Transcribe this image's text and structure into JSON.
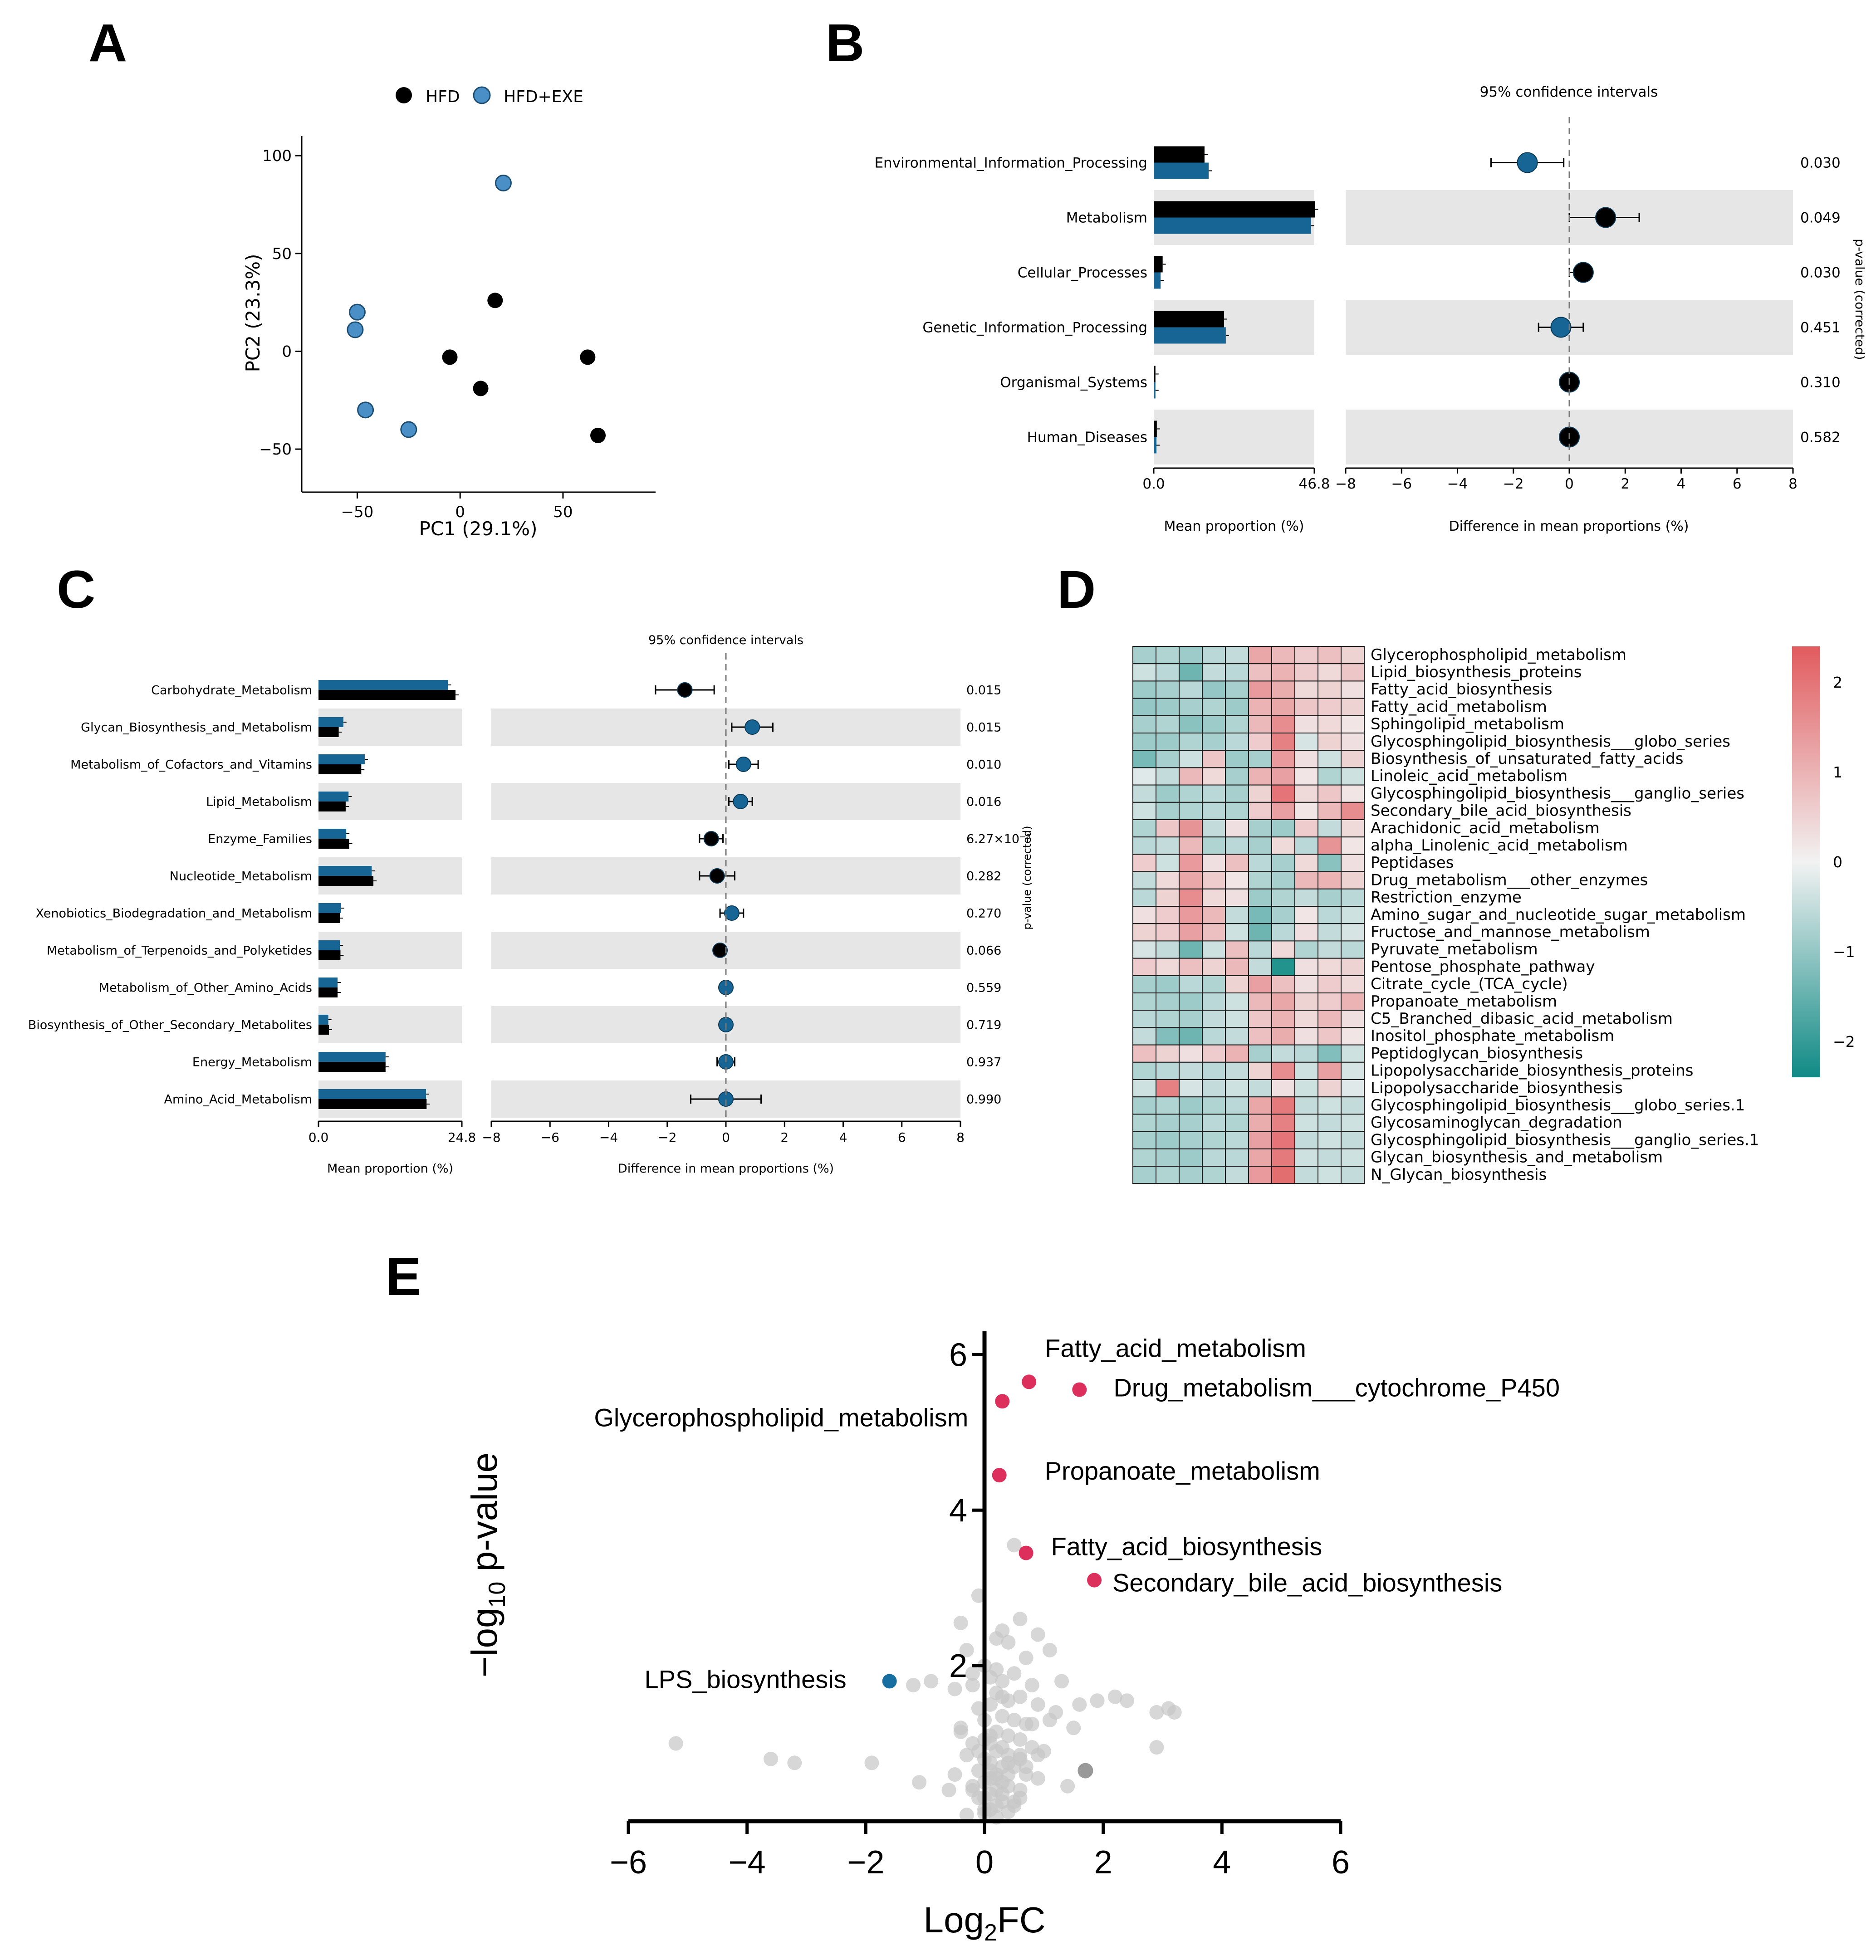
{
  "figure": {
    "panel_a_letter": "A",
    "panel_b_letter": "B",
    "panel_c_letter": "C",
    "panel_d_letter": "D",
    "panel_e_letter": "E"
  },
  "colors": {
    "hfd": "#000000",
    "hfd_exe_light": "#4a8fc6",
    "hfd_exe_dark": "#166595",
    "band": "#e6e6e6",
    "up": "#dc2f5b",
    "down": "#176ea0",
    "ns": "#c6c6c6",
    "heat_high": "#e15b5e",
    "heat_low": "#108a85"
  },
  "chart_data": [
    {
      "id": "A",
      "type": "scatter",
      "title": "",
      "xlabel": "PC1 (29.1%)",
      "ylabel": "PC2 (23.3%)",
      "xlim": [
        -77,
        95
      ],
      "ylim": [
        -72,
        110
      ],
      "xticks": [
        -50,
        0,
        50
      ],
      "yticks": [
        100,
        50,
        0,
        -50
      ],
      "legend": [
        "HFD",
        "HFD+EXE"
      ],
      "legend_position": "top",
      "series": [
        {
          "name": "HFD",
          "x": [
            17,
            -5,
            10,
            62,
            67
          ],
          "y": [
            26,
            -3,
            -19,
            -3,
            -43
          ]
        },
        {
          "name": "HFD+EXE",
          "x": [
            21,
            -50,
            -51,
            -46,
            -25
          ],
          "y": [
            86,
            20,
            11,
            -30,
            -40
          ]
        }
      ]
    },
    {
      "id": "B",
      "type": "bar+errorbar",
      "title": "95% confidence intervals",
      "categories": [
        "Environmental_Information_Processing",
        "Metabolism",
        "Cellular_Processes",
        "Genetic_Information_Processing",
        "Organismal_Systems",
        "Human_Diseases"
      ],
      "bar_xlabel": "Mean proportion (%)",
      "bar_xlim": [
        0,
        46.8
      ],
      "bar_xtick_labels": [
        "0.0",
        "46.8"
      ],
      "bar_series": [
        {
          "name": "HFD",
          "values": [
            14.8,
            47.0,
            2.6,
            20.5,
            0.5,
            0.9
          ]
        },
        {
          "name": "HFD+EXE",
          "values": [
            16.0,
            45.8,
            2.0,
            21.0,
            0.5,
            0.8
          ]
        }
      ],
      "diff_xlabel": "Difference in mean proportions (%)",
      "diff_xlim": [
        -8,
        8
      ],
      "diff_xticks": [
        -8,
        -6,
        -4,
        -2,
        0,
        2,
        4,
        6,
        8
      ],
      "diff": [
        -1.5,
        1.3,
        0.5,
        -0.3,
        0.0,
        0.0
      ],
      "ci_low": [
        -2.8,
        0.0,
        0.0,
        -1.1,
        -0.1,
        -0.1
      ],
      "ci_high": [
        -0.2,
        2.5,
        0.8,
        0.5,
        0.1,
        0.1
      ],
      "pvalues": [
        "0.030",
        "0.049",
        "0.030",
        "0.451",
        "0.310",
        "0.582"
      ],
      "pvalue_label": "p-value (corrected)"
    },
    {
      "id": "C",
      "type": "bar+errorbar",
      "title": "95% confidence intervals",
      "categories": [
        "Carbohydrate_Metabolism",
        "Glycan_Biosynthesis_and_Metabolism",
        "Metabolism_of_Cofactors_and_Vitamins",
        "Lipid_Metabolism",
        "Enzyme_Families",
        "Nucleotide_Metabolism",
        "Xenobiotics_Biodegradation_and_Metabolism",
        "Metabolism_of_Terpenoids_and_Polyketides",
        "Metabolism_of_Other_Amino_Acids",
        "Biosynthesis_of_Other_Secondary_Metabolites",
        "Energy_Metabolism",
        "Amino_Acid_Metabolism"
      ],
      "bar_xlabel": "Mean proportion (%)",
      "bar_xlim": [
        0,
        24.8
      ],
      "bar_xtick_labels": [
        "0.0",
        "24.8"
      ],
      "bar_series": [
        {
          "name": "HFD",
          "values": [
            23.7,
            3.5,
            7.4,
            4.7,
            5.3,
            9.5,
            3.7,
            3.8,
            3.3,
            1.8,
            11.6,
            18.7
          ]
        },
        {
          "name": "HFD+EXE",
          "values": [
            22.4,
            4.3,
            8.0,
            5.2,
            4.8,
            9.2,
            3.9,
            3.7,
            3.3,
            1.7,
            11.6,
            18.6
          ]
        }
      ],
      "diff_xlabel": "Difference in mean proportions (%)",
      "diff_xlim": [
        -8,
        8
      ],
      "diff_xticks": [
        -8,
        -6,
        -4,
        -2,
        0,
        2,
        4,
        6,
        8
      ],
      "diff": [
        -1.4,
        0.9,
        0.6,
        0.5,
        -0.5,
        -0.3,
        0.2,
        -0.2,
        0.0,
        0.0,
        0.0,
        0.0
      ],
      "ci_low": [
        -2.4,
        0.2,
        0.1,
        0.1,
        -0.9,
        -0.9,
        -0.2,
        -0.4,
        -0.1,
        -0.1,
        -0.3,
        -1.2
      ],
      "ci_high": [
        -0.4,
        1.6,
        1.1,
        0.9,
        -0.1,
        0.3,
        0.6,
        0.0,
        0.1,
        0.1,
        0.3,
        1.2
      ],
      "pvalues": [
        "0.015",
        "0.015",
        "0.010",
        "0.016",
        "6.27×10⁻³",
        "0.282",
        "0.270",
        "0.066",
        "0.559",
        "0.719",
        "0.937",
        "0.990"
      ],
      "pvalue_label": "p-value (corrected)"
    },
    {
      "id": "D",
      "type": "heatmap",
      "rows": [
        "Glycerophospholipid_metabolism",
        "Lipid_biosynthesis_proteins",
        "Fatty_acid_biosynthesis",
        "Fatty_acid_metabolism",
        "Sphingolipid_metabolism",
        "Glycosphingolipid_biosynthesis___globo_series",
        "Biosynthesis_of_unsaturated_fatty_acids",
        "Linoleic_acid_metabolism",
        "Glycosphingolipid_biosynthesis___ganglio_series",
        "Secondary_bile_acid_biosynthesis",
        "Arachidonic_acid_metabolism",
        "alpha_Linolenic_acid_metabolism",
        "Peptidases",
        "Drug_metabolism___other_enzymes",
        "Restriction_enzyme",
        "Amino_sugar_and_nucleotide_sugar_metabolism",
        "Fructose_and_mannose_metabolism",
        "Pyruvate_metabolism",
        "Pentose_phosphate_pathway",
        "Citrate_cycle_(TCA_cycle)",
        "Propanoate_metabolism",
        "C5_Branched_dibasic_acid_metabolism",
        "Inositol_phosphate_metabolism",
        "Peptidoglycan_biosynthesis",
        "Lipopolysaccharide_biosynthesis_proteins",
        "Lipopolysaccharide_biosynthesis",
        "Glycosphingolipid_biosynthesis___globo_series.1",
        "Glycosaminoglycan_degradation",
        "Glycosphingolipid_biosynthesis___ganglio_series.1",
        "Glycan_biosynthesis_and_metabolism",
        "N_Glycan_biosynthesis"
      ],
      "columns": 10,
      "colorbar_range": [
        -2.4,
        2.4
      ],
      "colorbar_ticks": [
        2,
        1,
        0,
        -1,
        -2
      ],
      "colorbar_labels": [
        "2",
        "1",
        "0",
        "−1",
        "−2"
      ],
      "values": [
        [
          -0.8,
          -0.7,
          -0.9,
          -0.6,
          -0.5,
          1.2,
          0.9,
          0.6,
          0.8,
          0.5
        ],
        [
          -0.4,
          -0.6,
          -1.4,
          -0.5,
          -0.6,
          0.8,
          1.0,
          0.6,
          0.4,
          0.7
        ],
        [
          -0.9,
          -0.8,
          -0.6,
          -1.0,
          -0.8,
          1.4,
          1.1,
          0.4,
          0.5,
          0.3
        ],
        [
          -1.0,
          -0.9,
          -0.8,
          -0.7,
          -0.9,
          1.0,
          1.2,
          0.7,
          0.6,
          0.5
        ],
        [
          -0.8,
          -0.7,
          -1.1,
          -0.9,
          -0.7,
          0.9,
          1.6,
          0.3,
          0.4,
          0.2
        ],
        [
          -0.9,
          -0.9,
          -0.7,
          -0.8,
          -0.6,
          0.6,
          1.8,
          -0.3,
          0.5,
          0.3
        ],
        [
          -1.3,
          -0.8,
          -0.4,
          0.7,
          -0.9,
          -0.8,
          1.4,
          0.3,
          -0.4,
          0.5
        ],
        [
          -0.2,
          -0.5,
          0.9,
          0.4,
          -0.8,
          1.0,
          1.3,
          0.2,
          -0.7,
          -0.4
        ],
        [
          -0.5,
          -0.9,
          -0.7,
          -0.6,
          -0.8,
          0.5,
          2.0,
          0.4,
          0.7,
          0.2
        ],
        [
          -0.4,
          -0.8,
          -0.7,
          -0.6,
          -0.7,
          0.6,
          1.3,
          0.2,
          0.9,
          1.6
        ],
        [
          -0.7,
          0.7,
          1.5,
          -0.5,
          0.3,
          -0.8,
          -0.9,
          0.6,
          -0.5,
          0.4
        ],
        [
          -0.6,
          -0.5,
          0.9,
          -0.7,
          -0.6,
          -0.8,
          0.4,
          -0.6,
          1.5,
          0.2
        ],
        [
          0.6,
          -0.4,
          1.4,
          0.3,
          0.8,
          -0.6,
          -0.8,
          0.4,
          -1.1,
          0.3
        ],
        [
          -0.5,
          0.4,
          1.2,
          0.6,
          0.2,
          -0.7,
          -0.8,
          0.9,
          1.0,
          0.5
        ],
        [
          -0.6,
          0.5,
          1.6,
          0.4,
          0.3,
          -0.9,
          -0.7,
          -0.5,
          -0.8,
          -0.6
        ],
        [
          0.3,
          0.6,
          1.4,
          0.9,
          -0.5,
          -1.3,
          -0.8,
          0.2,
          -0.6,
          -0.4
        ],
        [
          0.5,
          0.6,
          1.3,
          0.8,
          -0.4,
          -1.4,
          -0.6,
          0.3,
          -0.5,
          -0.3
        ],
        [
          -0.3,
          -0.5,
          -1.4,
          -0.4,
          0.8,
          -0.6,
          0.4,
          -0.7,
          -0.5,
          -0.6
        ],
        [
          0.6,
          0.4,
          0.8,
          0.5,
          0.9,
          -0.5,
          -2.2,
          0.3,
          0.4,
          0.5
        ],
        [
          -0.8,
          -0.9,
          -0.6,
          -0.7,
          0.5,
          1.3,
          0.8,
          0.3,
          0.6,
          0.4
        ],
        [
          -0.7,
          -0.8,
          -0.9,
          -0.6,
          -0.4,
          0.9,
          1.2,
          0.5,
          0.6,
          1.0
        ],
        [
          -0.6,
          -0.7,
          -0.8,
          -0.5,
          -0.4,
          0.7,
          1.0,
          0.4,
          0.9,
          0.3
        ],
        [
          -0.5,
          -1.2,
          -1.4,
          -0.6,
          -0.5,
          0.8,
          1.1,
          0.3,
          0.7,
          0.2
        ],
        [
          0.8,
          0.5,
          0.3,
          0.6,
          1.0,
          -0.8,
          -0.5,
          -0.6,
          -1.2,
          -0.4
        ],
        [
          -0.7,
          -0.6,
          -0.5,
          -0.6,
          -0.5,
          0.5,
          1.6,
          -0.4,
          1.3,
          -0.3
        ],
        [
          -0.4,
          1.8,
          -0.3,
          -0.5,
          -0.4,
          -0.5,
          0.3,
          -0.4,
          0.5,
          -0.2
        ],
        [
          -0.8,
          -0.7,
          -0.9,
          -0.7,
          -0.6,
          1.2,
          1.9,
          -0.5,
          -0.4,
          -0.5
        ],
        [
          -0.7,
          -0.8,
          -0.8,
          -0.6,
          -0.7,
          1.1,
          1.8,
          -0.4,
          -0.5,
          -0.4
        ],
        [
          -0.8,
          -0.9,
          -0.8,
          -0.7,
          -0.6,
          1.3,
          2.0,
          -0.5,
          -0.4,
          -0.5
        ],
        [
          -0.7,
          -0.8,
          -0.9,
          -0.6,
          -0.6,
          1.2,
          1.9,
          -0.4,
          -0.5,
          -0.4
        ],
        [
          -0.8,
          -0.7,
          -0.8,
          -0.7,
          -0.5,
          1.4,
          2.1,
          -0.5,
          -0.4,
          -0.5
        ]
      ]
    },
    {
      "id": "E",
      "type": "scatter",
      "title": "",
      "xlabel_base": "Log",
      "xlabel_sub": "2",
      "xlabel_tail": "FC",
      "ylabel_pre": "−log",
      "ylabel_sub": "10",
      "ylabel_post": " p-value",
      "xlim": [
        -6,
        6
      ],
      "ylim": [
        0,
        6.3
      ],
      "xticks": [
        -6,
        -4,
        -2,
        0,
        2,
        4,
        6
      ],
      "xtick_labels": [
        "−6",
        "−4",
        "−2",
        "0",
        "2",
        "4",
        "6"
      ],
      "yticks": [
        2,
        4,
        6
      ],
      "ytick_labels": [
        "2",
        "4",
        "6"
      ],
      "labeled_points": [
        {
          "label": "Fatty_acid_metabolism",
          "x": 0.75,
          "y": 5.65,
          "group": "up"
        },
        {
          "label": "Drug_metabolism___cytochrome_P450",
          "x": 1.6,
          "y": 5.55,
          "group": "up"
        },
        {
          "label": "Glycerophospholipid_metabolism",
          "x": 0.3,
          "y": 5.4,
          "group": "up"
        },
        {
          "label": "Propanoate_metabolism",
          "x": 0.25,
          "y": 4.45,
          "group": "up"
        },
        {
          "label": "Fatty_acid_biosynthesis",
          "x": 0.7,
          "y": 3.45,
          "group": "up"
        },
        {
          "label": "Secondary_bile_acid_biosynthesis",
          "x": 1.85,
          "y": 3.1,
          "group": "up"
        },
        {
          "label": "LPS_biosynthesis",
          "x": -1.6,
          "y": 1.8,
          "group": "down"
        }
      ],
      "background_points": {
        "x": [
          0.5,
          -0.1,
          0.6,
          0.3,
          -0.4,
          0.2,
          0.4,
          -0.3,
          0.9,
          1.1,
          0.7,
          0.0,
          0.2,
          -0.2,
          0.1,
          0.5,
          0.3,
          0.8,
          1.3,
          -0.5,
          0.2,
          0.6,
          0.4,
          0.1,
          -0.1,
          0.9,
          1.2,
          0.3,
          0.0,
          0.5,
          0.7,
          -0.4,
          1.5,
          0.2,
          0.4,
          0.6,
          -0.2,
          0.1,
          0.3,
          0.8,
          1.0,
          0.2,
          -0.3,
          0.4,
          0.6,
          0.0,
          0.1,
          0.3,
          0.5,
          -0.1,
          0.2,
          0.7,
          0.9,
          0.1,
          0.0,
          0.3,
          -0.2,
          0.4,
          0.2,
          0.6,
          0.1,
          0.0,
          -0.1,
          0.3,
          0.5,
          0.2,
          0.1,
          0.0,
          0.4,
          -0.3,
          2.4,
          2.9,
          3.1,
          3.2,
          2.2,
          1.9,
          1.6,
          -5.2,
          -3.6,
          -3.2,
          -1.9,
          -1.1,
          -0.6,
          -0.9,
          -1.2,
          1.7,
          2.9,
          1.1,
          0.9,
          -0.5,
          0.0,
          0.4,
          0.8,
          -0.2,
          0.3,
          1.4,
          0.6,
          0.2,
          -0.4,
          0.5,
          0.1,
          -0.1,
          0.3,
          0.7,
          0.2,
          0.0,
          0.4,
          -0.2,
          0.6,
          0.1
        ],
        "y": [
          3.55,
          2.9,
          2.6,
          2.45,
          2.55,
          2.35,
          2.3,
          2.2,
          2.4,
          2.2,
          2.1,
          2.0,
          1.95,
          1.9,
          1.85,
          1.9,
          1.8,
          1.75,
          1.8,
          1.7,
          1.65,
          1.6,
          1.55,
          1.5,
          1.45,
          1.5,
          1.4,
          1.35,
          1.3,
          1.3,
          1.25,
          1.2,
          1.2,
          1.15,
          1.1,
          1.05,
          1.0,
          1.0,
          0.95,
          0.95,
          0.9,
          0.9,
          0.85,
          0.85,
          0.8,
          0.8,
          0.75,
          0.7,
          0.7,
          0.65,
          0.6,
          0.6,
          0.55,
          0.55,
          0.5,
          0.5,
          0.45,
          0.45,
          0.4,
          0.4,
          0.35,
          0.3,
          0.3,
          0.25,
          0.25,
          0.2,
          0.15,
          0.1,
          0.12,
          0.08,
          1.55,
          1.4,
          1.45,
          1.4,
          1.6,
          1.55,
          1.5,
          1.0,
          0.8,
          0.75,
          0.75,
          0.5,
          0.4,
          1.8,
          1.75,
          0.65,
          0.95,
          1.3,
          0.85,
          0.6,
          1.05,
          0.75,
          1.25,
          1.75,
          1.6,
          0.45,
          0.3,
          0.55,
          1.15,
          0.2,
          0.65,
          0.9,
          0.35,
          0.7,
          0.05,
          0.15,
          0.6,
          0.4,
          0.85,
          1.1
        ]
      },
      "highlight_gray_point": {
        "x": 1.7,
        "y": 0.65
      }
    }
  ]
}
